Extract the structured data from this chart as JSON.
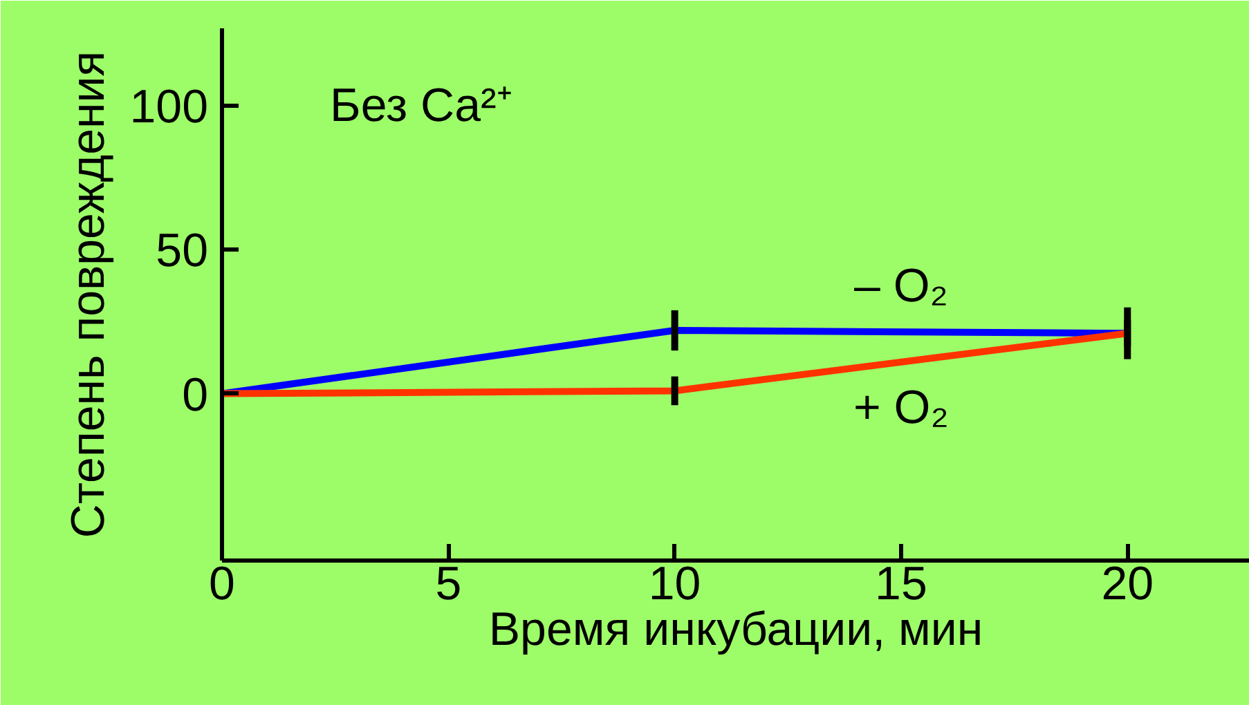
{
  "chart_data": {
    "type": "line",
    "xlabel": "Время инкубации, мин",
    "ylabel": "Степень повреждения",
    "annotations": [
      "Без Ca²⁺"
    ],
    "x": [
      0,
      10,
      20
    ],
    "xlim": [
      0,
      22.7
    ],
    "xticks": [
      0,
      5,
      10,
      15,
      20
    ],
    "ylim": [
      -58,
      127
    ],
    "yticks": [
      0,
      50,
      100
    ],
    "grid": false,
    "marker": "none",
    "line_style": "solid",
    "series": [
      {
        "name": "– O₂",
        "color": "#0000ff",
        "values": [
          0,
          22,
          21
        ],
        "errors": [
          null,
          7,
          9
        ]
      },
      {
        "name": "+ O₂",
        "color": "#ff3300",
        "values": [
          0,
          1,
          21
        ],
        "errors": [
          null,
          5,
          4.5
        ]
      }
    ]
  }
}
